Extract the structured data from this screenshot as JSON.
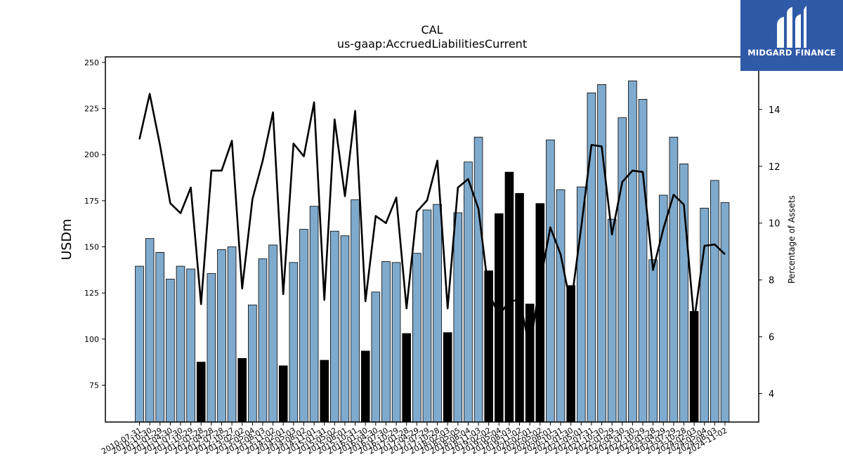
{
  "logo": {
    "text": "MIDGARD FINANCE"
  },
  "chart_data": {
    "type": "bar",
    "title": "CAL",
    "subtitle": "us-gaap:AccruedLiabilitiesCurrent",
    "ylabel": "USDm",
    "y2label": "Percentage of Assets",
    "ylim": [
      55,
      253
    ],
    "y2lim": [
      3.0,
      15.85
    ],
    "yticks": [
      75,
      100,
      125,
      150,
      175,
      200,
      225,
      250
    ],
    "y2ticks": [
      4,
      6,
      8,
      10,
      12,
      14
    ],
    "xlabel": "",
    "grid": false,
    "colors": {
      "bar": "#7eaacd",
      "bar_highlight": "#000000",
      "line": "#000000"
    },
    "categories": [
      "2010-07-31",
      "2010-10-30",
      "2011-01-29",
      "2011-04-30",
      "2011-07-30",
      "2011-10-29",
      "2012-01-28",
      "2012-04-28",
      "2012-07-28",
      "2012-10-27",
      "2013-02-02",
      "2013-05-04",
      "2013-08-03",
      "2013-11-02",
      "2014-02-01",
      "2014-05-03",
      "2014-08-02",
      "2014-11-01",
      "2015-01-31",
      "2015-05-02",
      "2015-08-01",
      "2015-10-31",
      "2016-01-30",
      "2016-04-30",
      "2016-07-30",
      "2016-10-29",
      "2017-01-28",
      "2017-04-29",
      "2017-07-29",
      "2017-10-28",
      "2018-02-03",
      "2018-05-05",
      "2018-08-04",
      "2018-11-03",
      "2019-02-02",
      "2019-05-04",
      "2019-08-03",
      "2019-11-02",
      "2020-02-01",
      "2020-05-02",
      "2020-08-01",
      "2020-10-31",
      "2021-01-30",
      "2021-05-01",
      "2021-07-31",
      "2021-10-30",
      "2022-01-29",
      "2022-04-30",
      "2022-07-30",
      "2022-10-29",
      "2023-01-28",
      "2023-04-29",
      "2023-07-29",
      "2023-10-28",
      "2024-02-03",
      "2024-05-04",
      "2024-08-03",
      "2024-11-02"
    ],
    "series": [
      {
        "values": [
          139.5,
          154.5,
          147,
          132.5,
          139.5,
          138,
          87.5,
          135.5,
          148.5,
          150,
          89.5,
          118.5,
          143.5,
          151,
          85.5,
          141.5,
          159.5,
          172,
          88.5,
          158.5,
          156,
          175.5,
          93.5,
          125.5,
          142,
          141.5,
          103,
          146.5,
          170,
          173,
          103.5,
          168.5,
          196,
          209.5,
          137,
          168,
          190.5,
          179,
          119,
          173.5,
          208,
          181,
          129,
          182.5,
          233.5,
          238,
          165,
          220,
          240,
          230,
          143,
          178,
          209.5,
          195,
          115,
          171,
          186,
          174
        ]
      },
      {
        "values": [
          12.95,
          14.55,
          12.75,
          10.7,
          10.35,
          11.25,
          7.15,
          11.85,
          11.85,
          12.9,
          7.7,
          10.85,
          12.2,
          13.9,
          7.5,
          12.8,
          12.35,
          14.25,
          7.3,
          13.65,
          10.95,
          13.95,
          7.25,
          10.25,
          10.0,
          10.9,
          7.0,
          10.4,
          10.8,
          12.2,
          7.0,
          11.25,
          11.55,
          10.5,
          7.55,
          6.75,
          7.25,
          7.3,
          5.6,
          7.9,
          9.85,
          8.9,
          7.1,
          9.85,
          12.75,
          12.7,
          9.6,
          11.45,
          11.85,
          11.8,
          8.35,
          9.8,
          11.0,
          10.65,
          6.55,
          9.2,
          9.25,
          8.9
        ]
      }
    ]
  }
}
